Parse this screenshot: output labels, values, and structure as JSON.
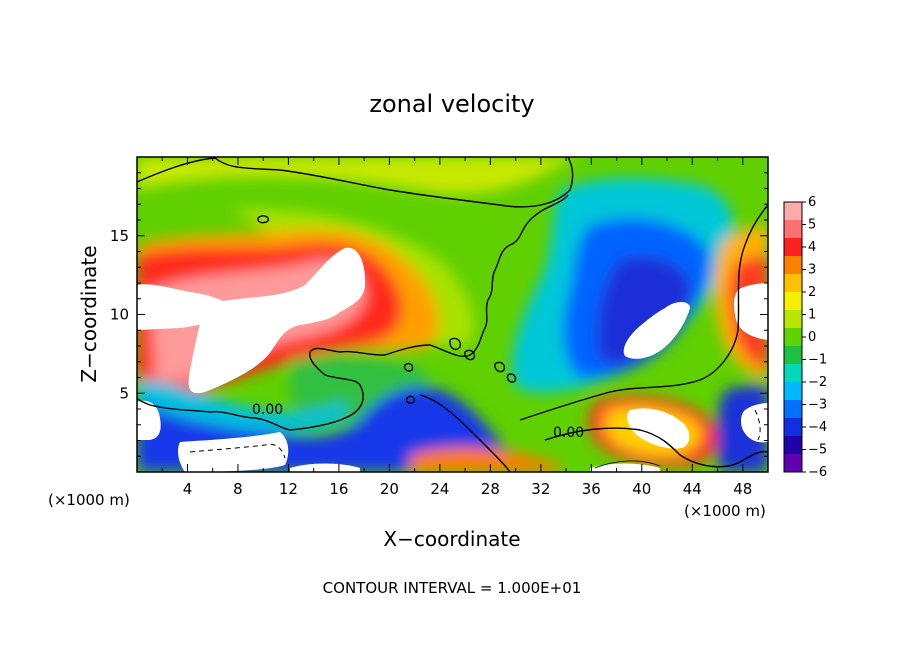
{
  "chart_data": {
    "type": "heatmap",
    "title": "zonal velocity",
    "xlabel": "X−coordinate",
    "ylabel": "Z−coordinate",
    "x_unit_note": "(×1000 m)",
    "y_unit_note": "(×1000 m)",
    "footer": "CONTOUR INTERVAL = 1.000E+01",
    "xlim": [
      0,
      50
    ],
    "ylim": [
      0,
      20
    ],
    "x_ticks": [
      4,
      8,
      12,
      16,
      20,
      24,
      28,
      32,
      36,
      40,
      44,
      48
    ],
    "y_ticks": [
      5,
      10,
      15
    ],
    "contour_labels": [
      "0.00",
      "0.00"
    ],
    "colorbar": {
      "min": -6,
      "max": 6,
      "ticks": [
        6,
        5,
        4,
        3,
        2,
        1,
        0,
        -1,
        -2,
        -3,
        -4,
        -5,
        -6
      ],
      "colors": [
        "#ffaaaa",
        "#ff7070",
        "#ff2020",
        "#ff8000",
        "#ffc000",
        "#f5f000",
        "#b8e600",
        "#5ed400",
        "#20c040",
        "#00d8b8",
        "#00b8ff",
        "#0070ff",
        "#1030e0",
        "#2000a8",
        "#6000b0"
      ]
    }
  }
}
